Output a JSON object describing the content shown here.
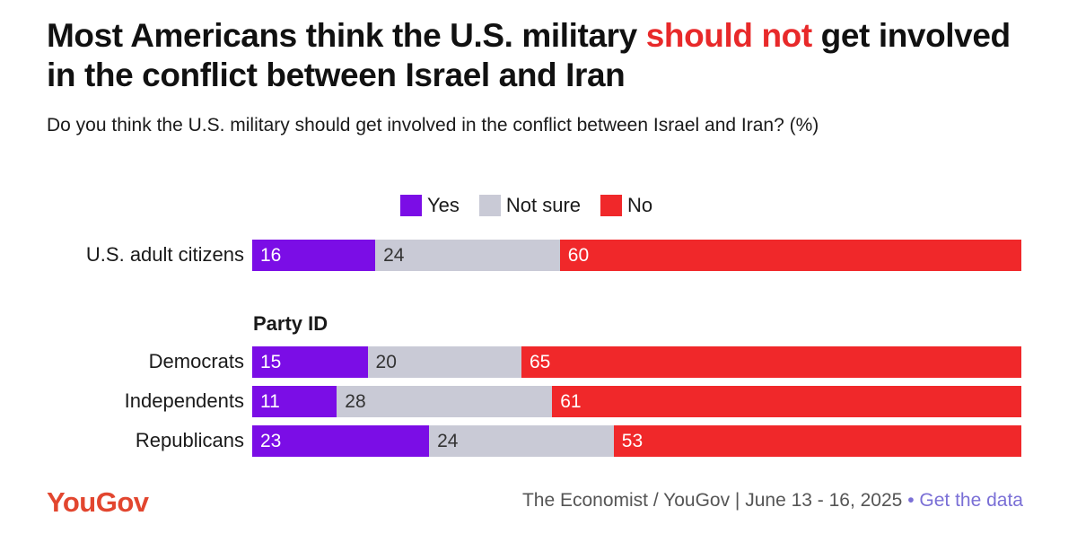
{
  "title": {
    "part1": "Most Americans think the U.S. military ",
    "highlight": "should not",
    "part2": " get involved in the conflict between Israel and Iran"
  },
  "subtitle": "Do you think the U.S. military should get involved in the conflict between Israel and Iran? (%)",
  "colors": {
    "yes": "#7b0de6",
    "not_sure": "#c9cad6",
    "no": "#f0282a",
    "highlight": "#e8292a",
    "brand": "#e2462f",
    "link": "#7a6fd6"
  },
  "chart_data": {
    "type": "bar",
    "orientation": "horizontal",
    "stacked": true,
    "title": "Most Americans think the U.S. military should not get involved in the conflict between Israel and Iran",
    "subtitle": "Do you think the U.S. military should get involved in the conflict between Israel and Iran? (%)",
    "legend": [
      "Yes",
      "Not sure",
      "No"
    ],
    "legend_position": "top-center",
    "group_label": "Party ID",
    "categories": [
      "U.S. adult citizens",
      "Democrats",
      "Independents",
      "Republicans"
    ],
    "series": [
      {
        "name": "Yes",
        "values": [
          16,
          15,
          11,
          23
        ]
      },
      {
        "name": "Not sure",
        "values": [
          24,
          20,
          28,
          24
        ]
      },
      {
        "name": "No",
        "values": [
          60,
          65,
          61,
          53
        ]
      }
    ],
    "xlim": [
      0,
      100
    ]
  },
  "footer": {
    "brand": "YouGov",
    "source": "The Economist / YouGov | June 13 - 16, 2025",
    "separator": "•",
    "link": "Get the data"
  }
}
